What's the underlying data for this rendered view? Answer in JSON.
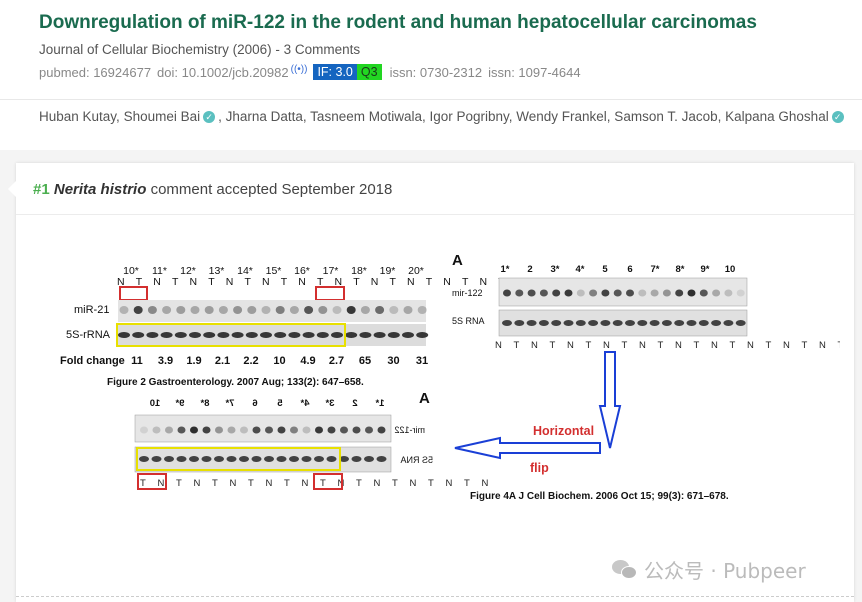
{
  "paper": {
    "title": "Downregulation of miR-122 in the rodent and human hepatocellular carcinomas",
    "journal": "Journal of Cellular Biochemistry (2006) - 3 Comments",
    "pubmed": "pubmed: 16924677",
    "doi": "doi: 10.1002/jcb.20982",
    "impact_factor": "IF: 3.0",
    "quartile": "Q3",
    "issn1": "issn: 0730-2312",
    "issn2": "issn: 1097-4644",
    "authors": [
      {
        "name": "Huban Kutay,",
        "verified": false
      },
      {
        "name": "Shoumei Bai",
        "verified": true
      },
      {
        "name": ", Jharna Datta, Tasneem Motiwala, Igor Pogribny, Wendy Frankel, Samson T. Jacob, Kalpana Ghoshal",
        "verified": true
      }
    ],
    "colors": {
      "title": "#1a6b4f",
      "if_badge": "#1565c0",
      "q_badge": "#22d622",
      "verified": "#5bc0c0"
    }
  },
  "comment": {
    "number": "#1",
    "user": "Nerita histrio",
    "text": "comment accepted September 2018"
  },
  "figure": {
    "left_lanes": [
      "10*",
      "11*",
      "12*",
      "13*",
      "14*",
      "15*",
      "16*",
      "17*",
      "18*",
      "19*",
      "20*"
    ],
    "left_nt": "N T N T N T N T N T N T N T N T N T N T N T",
    "left_row1": "miR-21",
    "left_row2": "5S-rRNA",
    "fold_label": "Fold change",
    "fold_values": [
      "11",
      "3.9",
      "1.9",
      "2.1",
      "2.2",
      "10",
      "4.9",
      "2.7",
      "65",
      "30",
      "31"
    ],
    "caption_left": "Figure 2 Gastroenterology. 2007 Aug; 133(2): 647–658.",
    "panel_letter": "A",
    "right_lanes": [
      "1*",
      "2",
      "3*",
      "4*",
      "5",
      "6",
      "7*",
      "8*",
      "9*",
      "10"
    ],
    "right_row1": "mir-122",
    "right_row2": "5S RNA",
    "right_nt": "N T N T N T N T N T N T N T N T N T N T",
    "flipped_lanes": [
      "10",
      "9*",
      "8*",
      "7*",
      "6",
      "5",
      "4*",
      "3*",
      "2",
      "1*"
    ],
    "flipped_row1": "mir-122",
    "flipped_row2": "5S RNA",
    "flipped_nt": "T N T N T N T N T N T N T N T N T N T N",
    "annotation_line1": "Horizontal",
    "annotation_line2": "flip",
    "caption_right": "Figure 4A J Cell Biochem. 2006 Oct 15; 99(3): 671–678."
  },
  "watermark": {
    "text": "公众号 · Pubpeer",
    "icon": "wechat-icon"
  }
}
